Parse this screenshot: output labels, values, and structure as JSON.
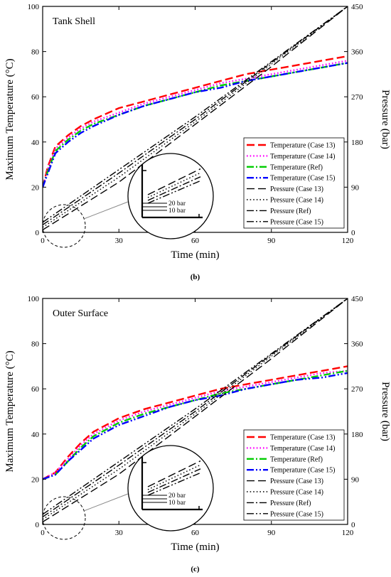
{
  "chart_data": [
    {
      "type": "line",
      "panel_title": "Tank Shell",
      "caption": "(b)",
      "xlabel": "Time (min)",
      "ylabel": "Maximum Temperature (°C)",
      "y2label": "Pressure (bar)",
      "xlim": [
        0,
        120
      ],
      "ylim": [
        0,
        100
      ],
      "y2lim": [
        0,
        450
      ],
      "xticks": [
        "0",
        "30",
        "60",
        "90",
        "120"
      ],
      "yticks": [
        "0",
        "20",
        "40",
        "60",
        "80",
        "100"
      ],
      "y2ticks": [
        "0",
        "90",
        "180",
        "270",
        "360",
        "450"
      ],
      "legend_position": "bottom-right",
      "inset_labels": [
        "20 bar",
        "10 bar"
      ],
      "series": [
        {
          "name": "Temperature (Case 13)",
          "axis": "left",
          "color": "#ff0000",
          "dash": "long-dash",
          "x": [
            0,
            2,
            5,
            10,
            15,
            20,
            30,
            40,
            50,
            60,
            70,
            80,
            90,
            100,
            110,
            120
          ],
          "y": [
            20,
            29,
            38,
            43,
            47,
            50,
            55,
            58,
            61,
            64,
            67,
            70,
            72,
            74,
            76,
            78
          ]
        },
        {
          "name": "Temperature (Case 14)",
          "axis": "left",
          "color": "#ff00ff",
          "dash": "dot",
          "x": [
            0,
            2,
            5,
            10,
            15,
            20,
            30,
            40,
            50,
            60,
            70,
            80,
            90,
            100,
            110,
            120
          ],
          "y": [
            20,
            28,
            37,
            42,
            46,
            49,
            53,
            57,
            60,
            63,
            66,
            68,
            70,
            72,
            74,
            76
          ]
        },
        {
          "name": "Temperature (Ref)",
          "axis": "left",
          "color": "#00cc00",
          "dash": "dash-dot",
          "x": [
            0,
            2,
            5,
            10,
            15,
            20,
            30,
            40,
            50,
            60,
            70,
            80,
            90,
            100,
            110,
            120
          ],
          "y": [
            20,
            27,
            36,
            41,
            45,
            48,
            52,
            56,
            59,
            62,
            65,
            67,
            69,
            71,
            73,
            75
          ]
        },
        {
          "name": "Temperature (Case 15)",
          "axis": "left",
          "color": "#0000ff",
          "dash": "dash-dot-dot",
          "x": [
            0,
            2,
            5,
            10,
            15,
            20,
            30,
            40,
            50,
            60,
            70,
            80,
            90,
            100,
            110,
            120
          ],
          "y": [
            20,
            26,
            35,
            40,
            44,
            47,
            52,
            56,
            59,
            62,
            64,
            67,
            69,
            71,
            73,
            75
          ]
        },
        {
          "name": "Pressure (Case 13)",
          "axis": "right",
          "color": "#000000",
          "dash": "long-dash",
          "x": [
            0,
            30,
            60,
            90,
            120
          ],
          "y": [
            5,
            100,
            215,
            330,
            450
          ]
        },
        {
          "name": "Pressure (Case 14)",
          "axis": "right",
          "color": "#000000",
          "dash": "dot",
          "x": [
            0,
            30,
            60,
            90,
            120
          ],
          "y": [
            10,
            110,
            220,
            335,
            450
          ]
        },
        {
          "name": "Pressure (Ref)",
          "axis": "right",
          "color": "#000000",
          "dash": "dash-dot",
          "x": [
            0,
            30,
            60,
            90,
            120
          ],
          "y": [
            15,
            118,
            225,
            338,
            450
          ]
        },
        {
          "name": "Pressure (Case 15)",
          "axis": "right",
          "color": "#000000",
          "dash": "dash-dot-dot",
          "x": [
            0,
            30,
            60,
            90,
            120
          ],
          "y": [
            20,
            125,
            230,
            340,
            450
          ]
        }
      ]
    },
    {
      "type": "line",
      "panel_title": "Outer Surface",
      "caption": "(c)",
      "xlabel": "Time (min)",
      "ylabel": "Maximum Temperature (°C)",
      "y2label": "Pressure (bar)",
      "xlim": [
        0,
        120
      ],
      "ylim": [
        0,
        100
      ],
      "y2lim": [
        0,
        450
      ],
      "xticks": [
        "0",
        "30",
        "60",
        "90",
        "120"
      ],
      "yticks": [
        "0",
        "20",
        "40",
        "60",
        "80",
        "100"
      ],
      "y2ticks": [
        "0",
        "90",
        "180",
        "270",
        "360",
        "450"
      ],
      "legend_position": "bottom-right",
      "inset_labels": [
        "20 bar",
        "10 bar"
      ],
      "series": [
        {
          "name": "Temperature (Case 13)",
          "axis": "left",
          "color": "#ff0000",
          "dash": "long-dash",
          "x": [
            0,
            5,
            10,
            15,
            20,
            30,
            40,
            50,
            60,
            70,
            80,
            90,
            100,
            110,
            120
          ],
          "y": [
            20,
            23,
            30,
            36,
            41,
            47,
            51,
            54,
            57,
            60,
            62,
            64,
            66,
            68,
            70
          ]
        },
        {
          "name": "Temperature (Case 14)",
          "axis": "left",
          "color": "#ff00ff",
          "dash": "dot",
          "x": [
            0,
            5,
            10,
            15,
            20,
            30,
            40,
            50,
            60,
            70,
            80,
            90,
            100,
            110,
            120
          ],
          "y": [
            20,
            23,
            29,
            35,
            40,
            46,
            50,
            53,
            56,
            59,
            61,
            63,
            65,
            67,
            68
          ]
        },
        {
          "name": "Temperature (Ref)",
          "axis": "left",
          "color": "#00cc00",
          "dash": "dash-dot",
          "x": [
            0,
            5,
            10,
            15,
            20,
            30,
            40,
            50,
            60,
            70,
            80,
            90,
            100,
            110,
            120
          ],
          "y": [
            20,
            22,
            28,
            34,
            39,
            45,
            49,
            52,
            55,
            58,
            60,
            62,
            64,
            66,
            68
          ]
        },
        {
          "name": "Temperature (Case 15)",
          "axis": "left",
          "color": "#0000ff",
          "dash": "dash-dot-dot",
          "x": [
            0,
            5,
            10,
            15,
            20,
            30,
            40,
            50,
            60,
            70,
            80,
            90,
            100,
            110,
            120
          ],
          "y": [
            20,
            22,
            28,
            33,
            38,
            44,
            48,
            52,
            55,
            57,
            60,
            62,
            64,
            65,
            67
          ]
        },
        {
          "name": "Pressure (Case 13)",
          "axis": "right",
          "color": "#000000",
          "dash": "long-dash",
          "x": [
            0,
            30,
            60,
            90,
            120
          ],
          "y": [
            5,
            100,
            215,
            330,
            450
          ]
        },
        {
          "name": "Pressure (Case 14)",
          "axis": "right",
          "color": "#000000",
          "dash": "dot",
          "x": [
            0,
            30,
            60,
            90,
            120
          ],
          "y": [
            10,
            110,
            220,
            335,
            450
          ]
        },
        {
          "name": "Pressure (Ref)",
          "axis": "right",
          "color": "#000000",
          "dash": "dash-dot",
          "x": [
            0,
            30,
            60,
            90,
            120
          ],
          "y": [
            15,
            118,
            225,
            338,
            450
          ]
        },
        {
          "name": "Pressure (Case 15)",
          "axis": "right",
          "color": "#000000",
          "dash": "dash-dot-dot",
          "x": [
            0,
            30,
            60,
            90,
            120
          ],
          "y": [
            20,
            125,
            230,
            340,
            450
          ]
        }
      ]
    }
  ]
}
